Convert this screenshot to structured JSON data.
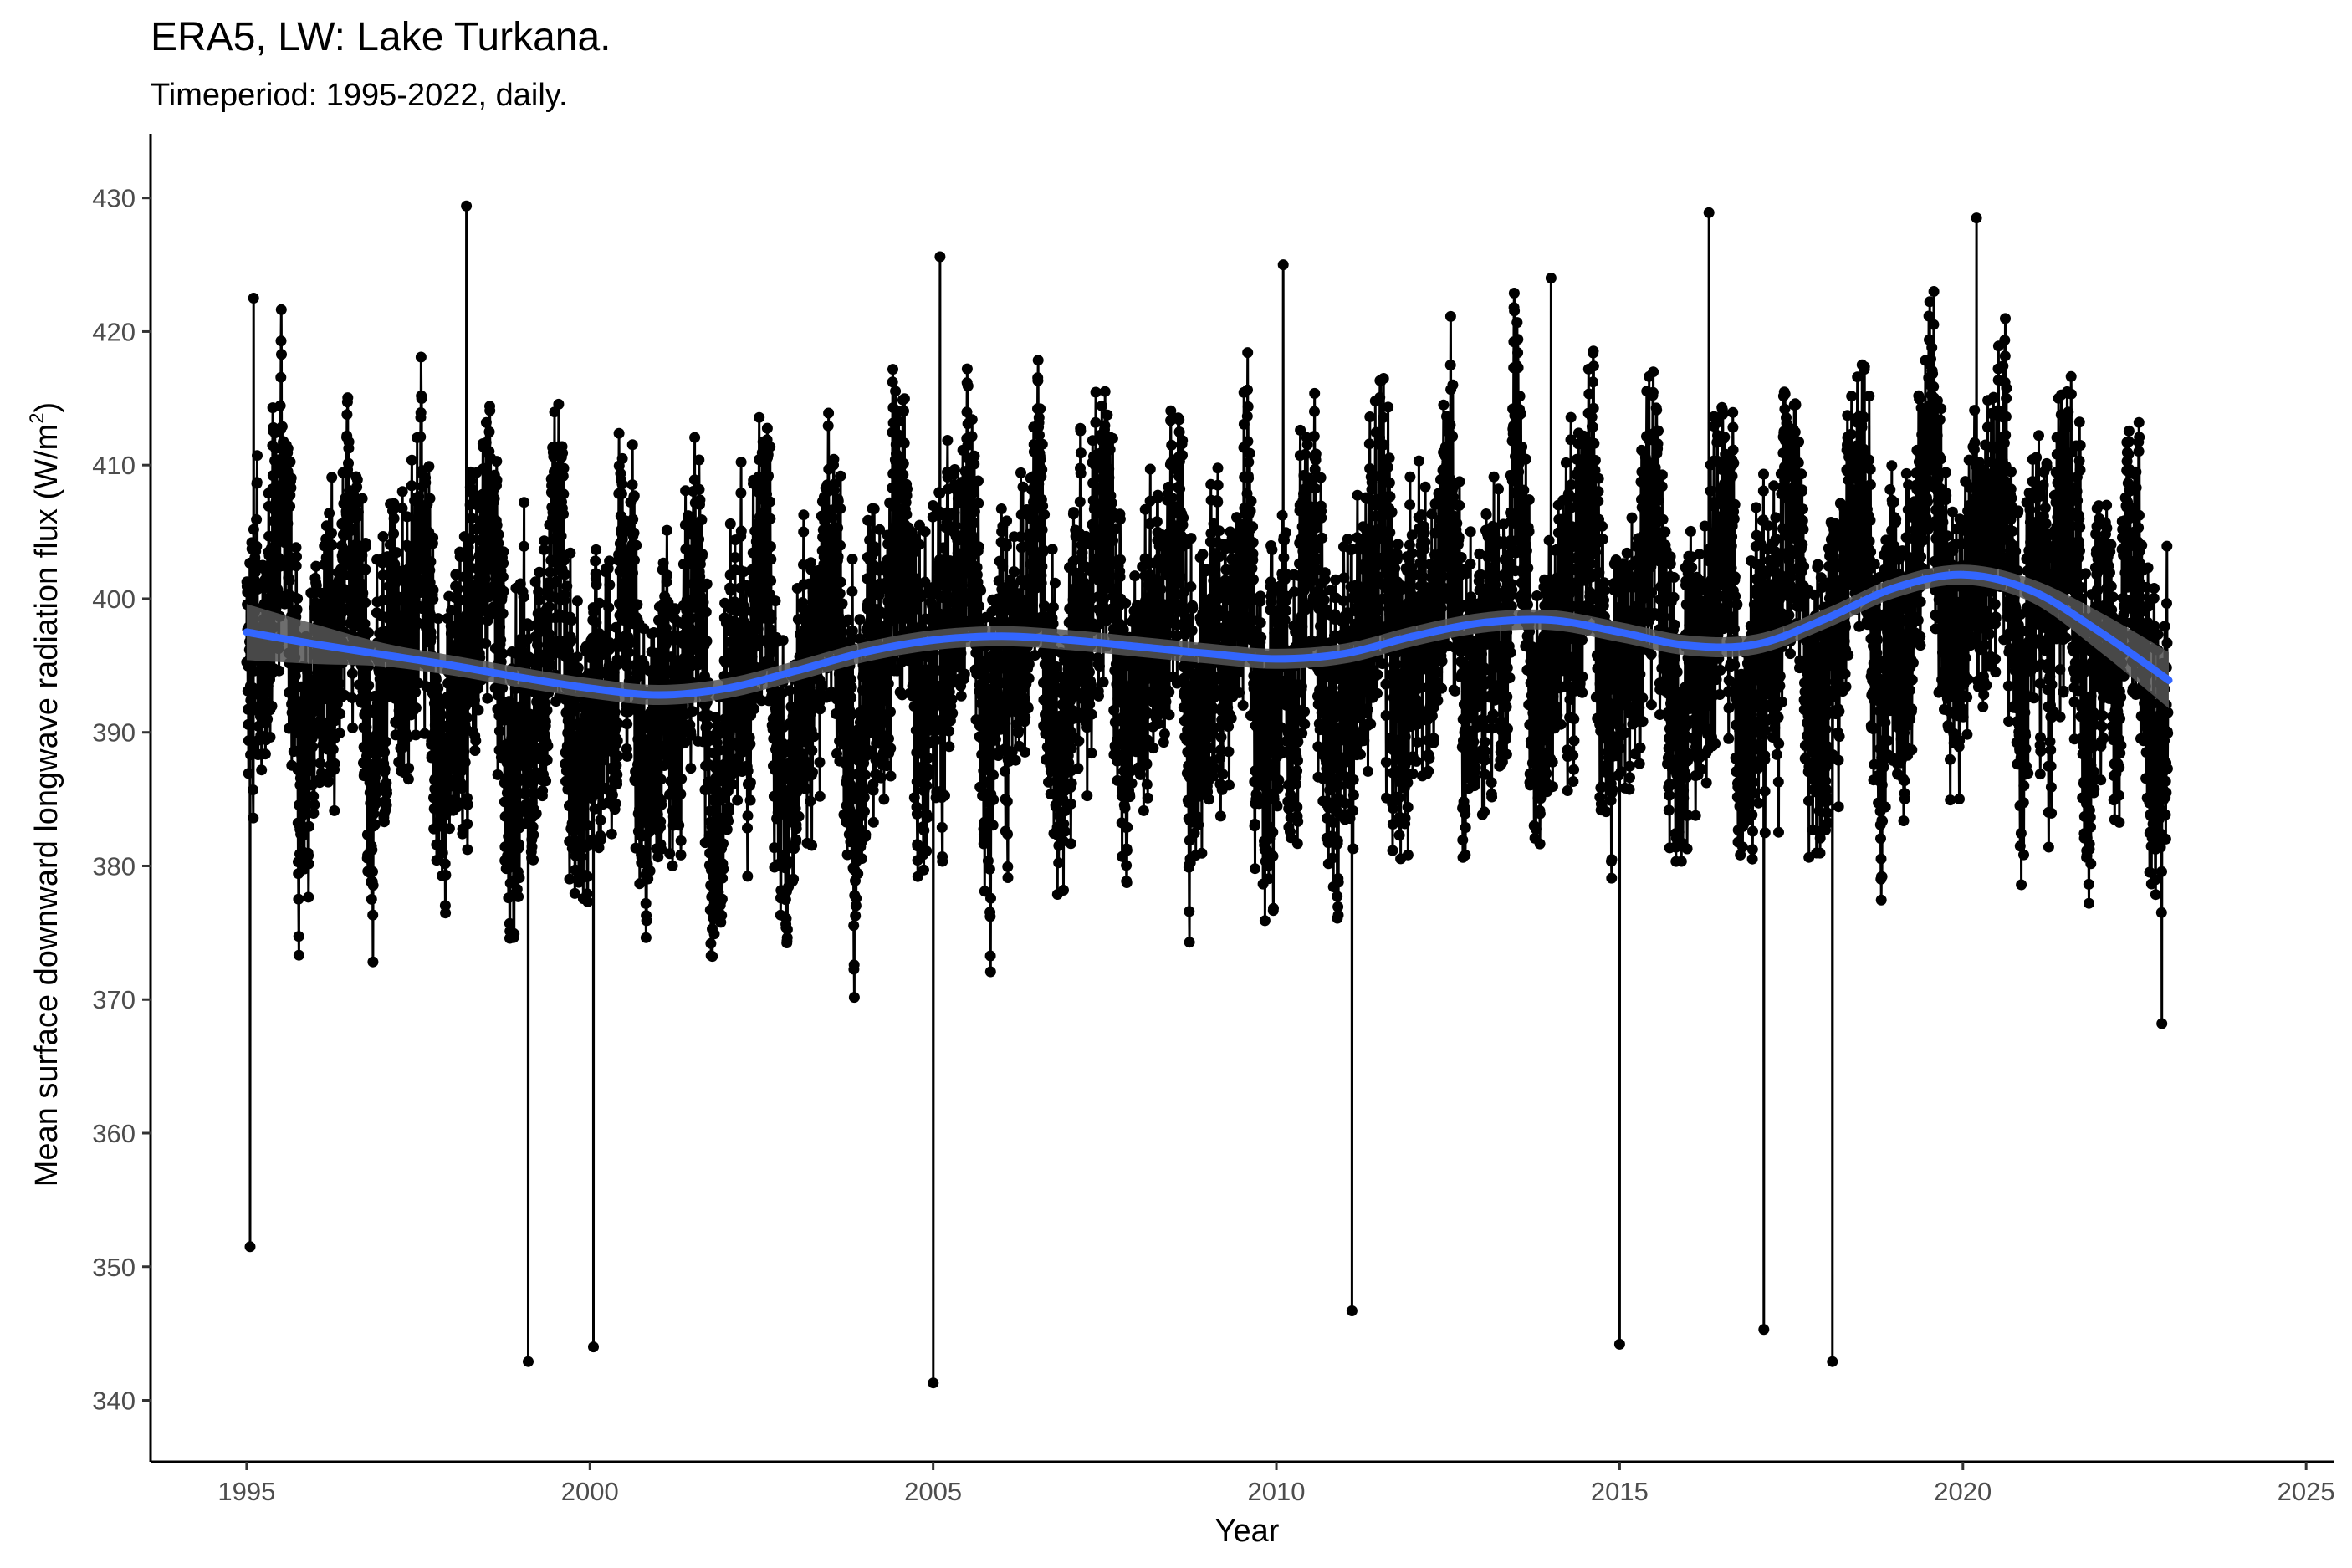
{
  "chart_data": {
    "type": "line",
    "title": "ERA5, LW: Lake Turkana.",
    "subtitle": "Timeperiod: 1995-2022, daily.",
    "xlabel": "Year",
    "ylabel_main": "Mean surface downward longwave radiation flux (W/m",
    "ylabel_sup": "2",
    "ylabel_end": ")",
    "xlim": [
      1993.6,
      2025.4
    ],
    "ylim": [
      335.4,
      434.8
    ],
    "x_ticks": [
      1995,
      2000,
      2005,
      2010,
      2015,
      2020,
      2025
    ],
    "y_ticks": [
      340,
      350,
      360,
      370,
      380,
      390,
      400,
      410,
      420,
      430
    ],
    "grid": false,
    "legend": "none",
    "series": [
      {
        "kind": "daily values (points + line)",
        "color": "#000000",
        "x_range": [
          1995.0,
          2022.99
        ],
        "peaks": [
          {
            "x": 1995.05,
            "y": 351.5
          },
          {
            "x": 1995.1,
            "y": 422.5
          },
          {
            "x": 1998.2,
            "y": 429.4
          },
          {
            "x": 1999.1,
            "y": 342.9
          },
          {
            "x": 2000.05,
            "y": 344.0
          },
          {
            "x": 2005.0,
            "y": 341.3
          },
          {
            "x": 2005.1,
            "y": 425.6
          },
          {
            "x": 2010.1,
            "y": 425.0
          },
          {
            "x": 2011.1,
            "y": 346.7
          },
          {
            "x": 2014.0,
            "y": 424.0
          },
          {
            "x": 2015.0,
            "y": 344.2
          },
          {
            "x": 2016.3,
            "y": 428.9
          },
          {
            "x": 2017.1,
            "y": 345.3
          },
          {
            "x": 2018.1,
            "y": 342.9
          },
          {
            "x": 2020.2,
            "y": 428.5
          },
          {
            "x": 2022.9,
            "y": 368.2
          }
        ]
      },
      {
        "kind": "smooth trend with confidence band",
        "color": "#3366ff",
        "band_color": "#555555",
        "x": [
          1995.0,
          1996.0,
          1997.0,
          1998.0,
          1999.0,
          2000.0,
          2001.0,
          2002.0,
          2003.0,
          2004.0,
          2005.0,
          2006.0,
          2007.0,
          2008.0,
          2009.0,
          2010.0,
          2011.0,
          2012.0,
          2013.0,
          2014.0,
          2015.0,
          2016.0,
          2017.0,
          2018.0,
          2019.0,
          2020.0,
          2021.0,
          2022.0,
          2023.0
        ],
        "y": [
          397.5,
          396.6,
          395.8,
          395.0,
          394.1,
          393.3,
          392.8,
          393.3,
          394.6,
          396.0,
          396.9,
          397.2,
          396.9,
          396.4,
          395.9,
          395.5,
          395.9,
          397.2,
          398.2,
          398.4,
          397.5,
          396.5,
          396.6,
          398.5,
          400.8,
          401.8,
          400.6,
          397.5,
          393.9
        ]
      }
    ]
  }
}
